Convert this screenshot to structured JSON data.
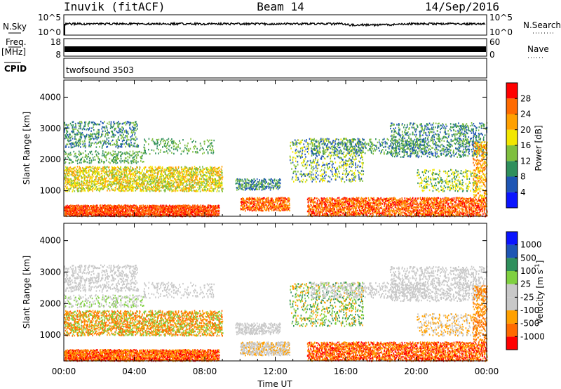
{
  "header": {
    "station": "Inuvik (fitACF)",
    "beam": "Beam 14",
    "date": "14/Sep/2016"
  },
  "side_labels": {
    "nsky": "N.Sky",
    "freq": "Freq.",
    "freq_unit": "[MHz]",
    "cpid": "CPID",
    "nsearch": "N.Search",
    "nave": "Nave",
    "nsky_top": "10^5",
    "nsky_bottom": "10^0",
    "freq_top": "18",
    "freq_bottom": "8",
    "nave_top": "60",
    "nave_bottom": "0",
    "cpid_text": "twofsound 3503"
  },
  "colors": {
    "power": [
      "#0a14ff",
      "#1e55b4",
      "#2f8f5c",
      "#7fbf3f",
      "#f2e600",
      "#ffa000",
      "#ff6a00",
      "#ff0000"
    ],
    "velocity": [
      "#ff0000",
      "#ff6a00",
      "#ffa000",
      "#c8c8c8",
      "#c8c8c8",
      "#7fd040",
      "#2f8f5c",
      "#1e55b4",
      "#0a14ff"
    ]
  },
  "chart_data": [
    {
      "type": "heatmap",
      "name": "power",
      "ylabel": "Slant Range [km]",
      "ylim": [
        180,
        4550
      ],
      "yticks": [
        1000,
        2000,
        3000,
        4000
      ],
      "xlim": [
        0,
        24
      ],
      "colorbar_label": "Power [dB]",
      "colorbar_ticks": [
        "4",
        "8",
        "12",
        "16",
        "20",
        "24",
        "28"
      ]
    },
    {
      "type": "heatmap",
      "name": "velocity",
      "ylabel": "Slant Range [km]",
      "ylim": [
        180,
        4550
      ],
      "yticks": [
        1000,
        2000,
        3000,
        4000
      ],
      "xlim": [
        0,
        24
      ],
      "xlabel": "Time UT",
      "xticks": [
        "00:00",
        "04:00",
        "08:00",
        "12:00",
        "16:00",
        "20:00",
        "00:00"
      ],
      "colorbar_label": "Velocity [m s^-1]",
      "colorbar_ticks": [
        "1000",
        "500",
        "100",
        "25",
        "-25",
        "-100",
        "-500",
        "-1000"
      ]
    }
  ]
}
